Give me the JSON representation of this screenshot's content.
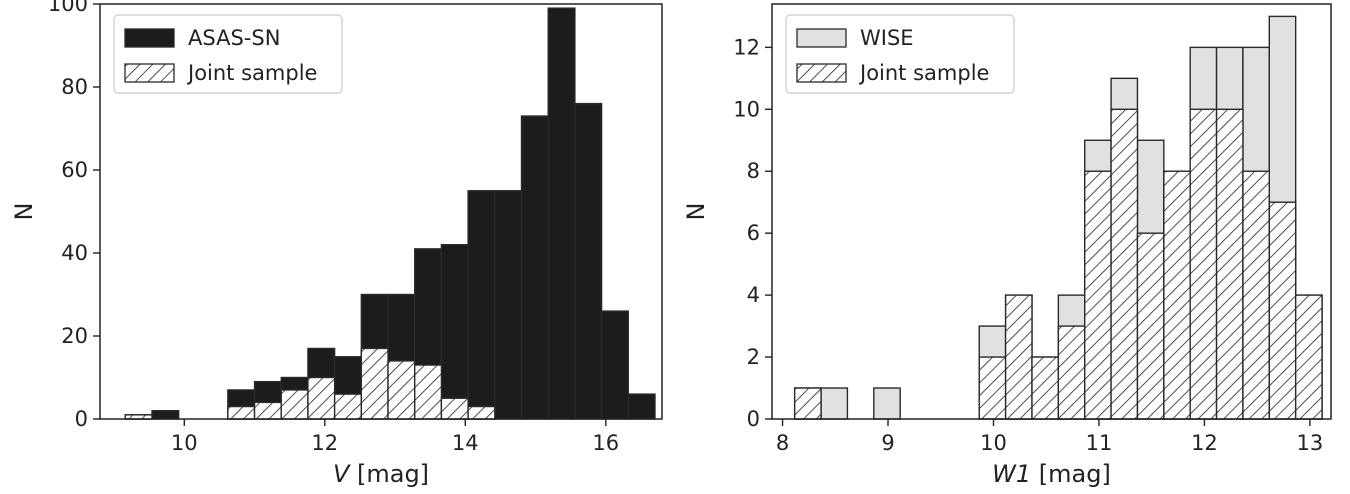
{
  "chart_data": [
    {
      "type": "bar",
      "subtype": "histogram",
      "xlabel_var": "V",
      "xlabel_unit": " [mag]",
      "ylabel": "N",
      "xlim": [
        8.8,
        16.8
      ],
      "ylim": [
        0,
        100
      ],
      "xticks": [
        10,
        12,
        14,
        16
      ],
      "yticks": [
        0,
        20,
        40,
        60,
        80,
        100
      ],
      "bin_width": 0.38,
      "legend_position": "upper-left",
      "series": [
        {
          "name": "ASAS-SN",
          "style": "solid",
          "color": "#1c1c1c",
          "x": [
            9.35,
            9.73,
            10.81,
            11.19,
            11.57,
            11.95,
            12.33,
            12.71,
            13.09,
            13.47,
            13.85,
            14.23,
            14.61,
            14.99,
            15.37,
            15.75,
            16.13,
            16.51
          ],
          "values": [
            1,
            2,
            7,
            9,
            10,
            17,
            15,
            30,
            30,
            41,
            42,
            55,
            55,
            73,
            99,
            76,
            26,
            6
          ]
        },
        {
          "name": "Joint sample",
          "style": "hatched",
          "color": "#ffffff",
          "x": [
            9.35,
            10.81,
            11.19,
            11.57,
            11.95,
            12.33,
            12.71,
            13.09,
            13.47,
            13.85,
            14.23
          ],
          "values": [
            1,
            3,
            4,
            7,
            10,
            6,
            17,
            14,
            13,
            5,
            3
          ]
        }
      ]
    },
    {
      "type": "bar",
      "subtype": "histogram",
      "xlabel_var": "W1",
      "xlabel_unit": " [mag]",
      "ylabel": "N",
      "xlim": [
        7.9,
        13.2
      ],
      "ylim": [
        0,
        13.4
      ],
      "xticks": [
        8,
        9,
        10,
        11,
        12,
        13
      ],
      "yticks": [
        0,
        2,
        4,
        6,
        8,
        10,
        12
      ],
      "bin_width": 0.25,
      "legend_position": "upper-left",
      "series": [
        {
          "name": "WISE",
          "style": "light",
          "color": "#e0e1e3",
          "x": [
            8.24,
            8.49,
            8.99,
            9.99,
            10.24,
            10.49,
            10.74,
            10.99,
            11.24,
            11.49,
            11.74,
            11.99,
            12.24,
            12.49,
            12.74,
            12.99
          ],
          "values": [
            1,
            1,
            1,
            3,
            4,
            2,
            4,
            9,
            11,
            9,
            8,
            12,
            12,
            12,
            13,
            4
          ]
        },
        {
          "name": "Joint sample",
          "style": "hatched",
          "color": "#ffffff",
          "x": [
            8.24,
            9.99,
            10.24,
            10.49,
            10.74,
            10.99,
            11.24,
            11.49,
            11.74,
            11.99,
            12.24,
            12.49,
            12.74,
            12.99
          ],
          "values": [
            1,
            2,
            4,
            2,
            3,
            8,
            10,
            6,
            8,
            10,
            10,
            8,
            7,
            4
          ]
        }
      ]
    }
  ]
}
